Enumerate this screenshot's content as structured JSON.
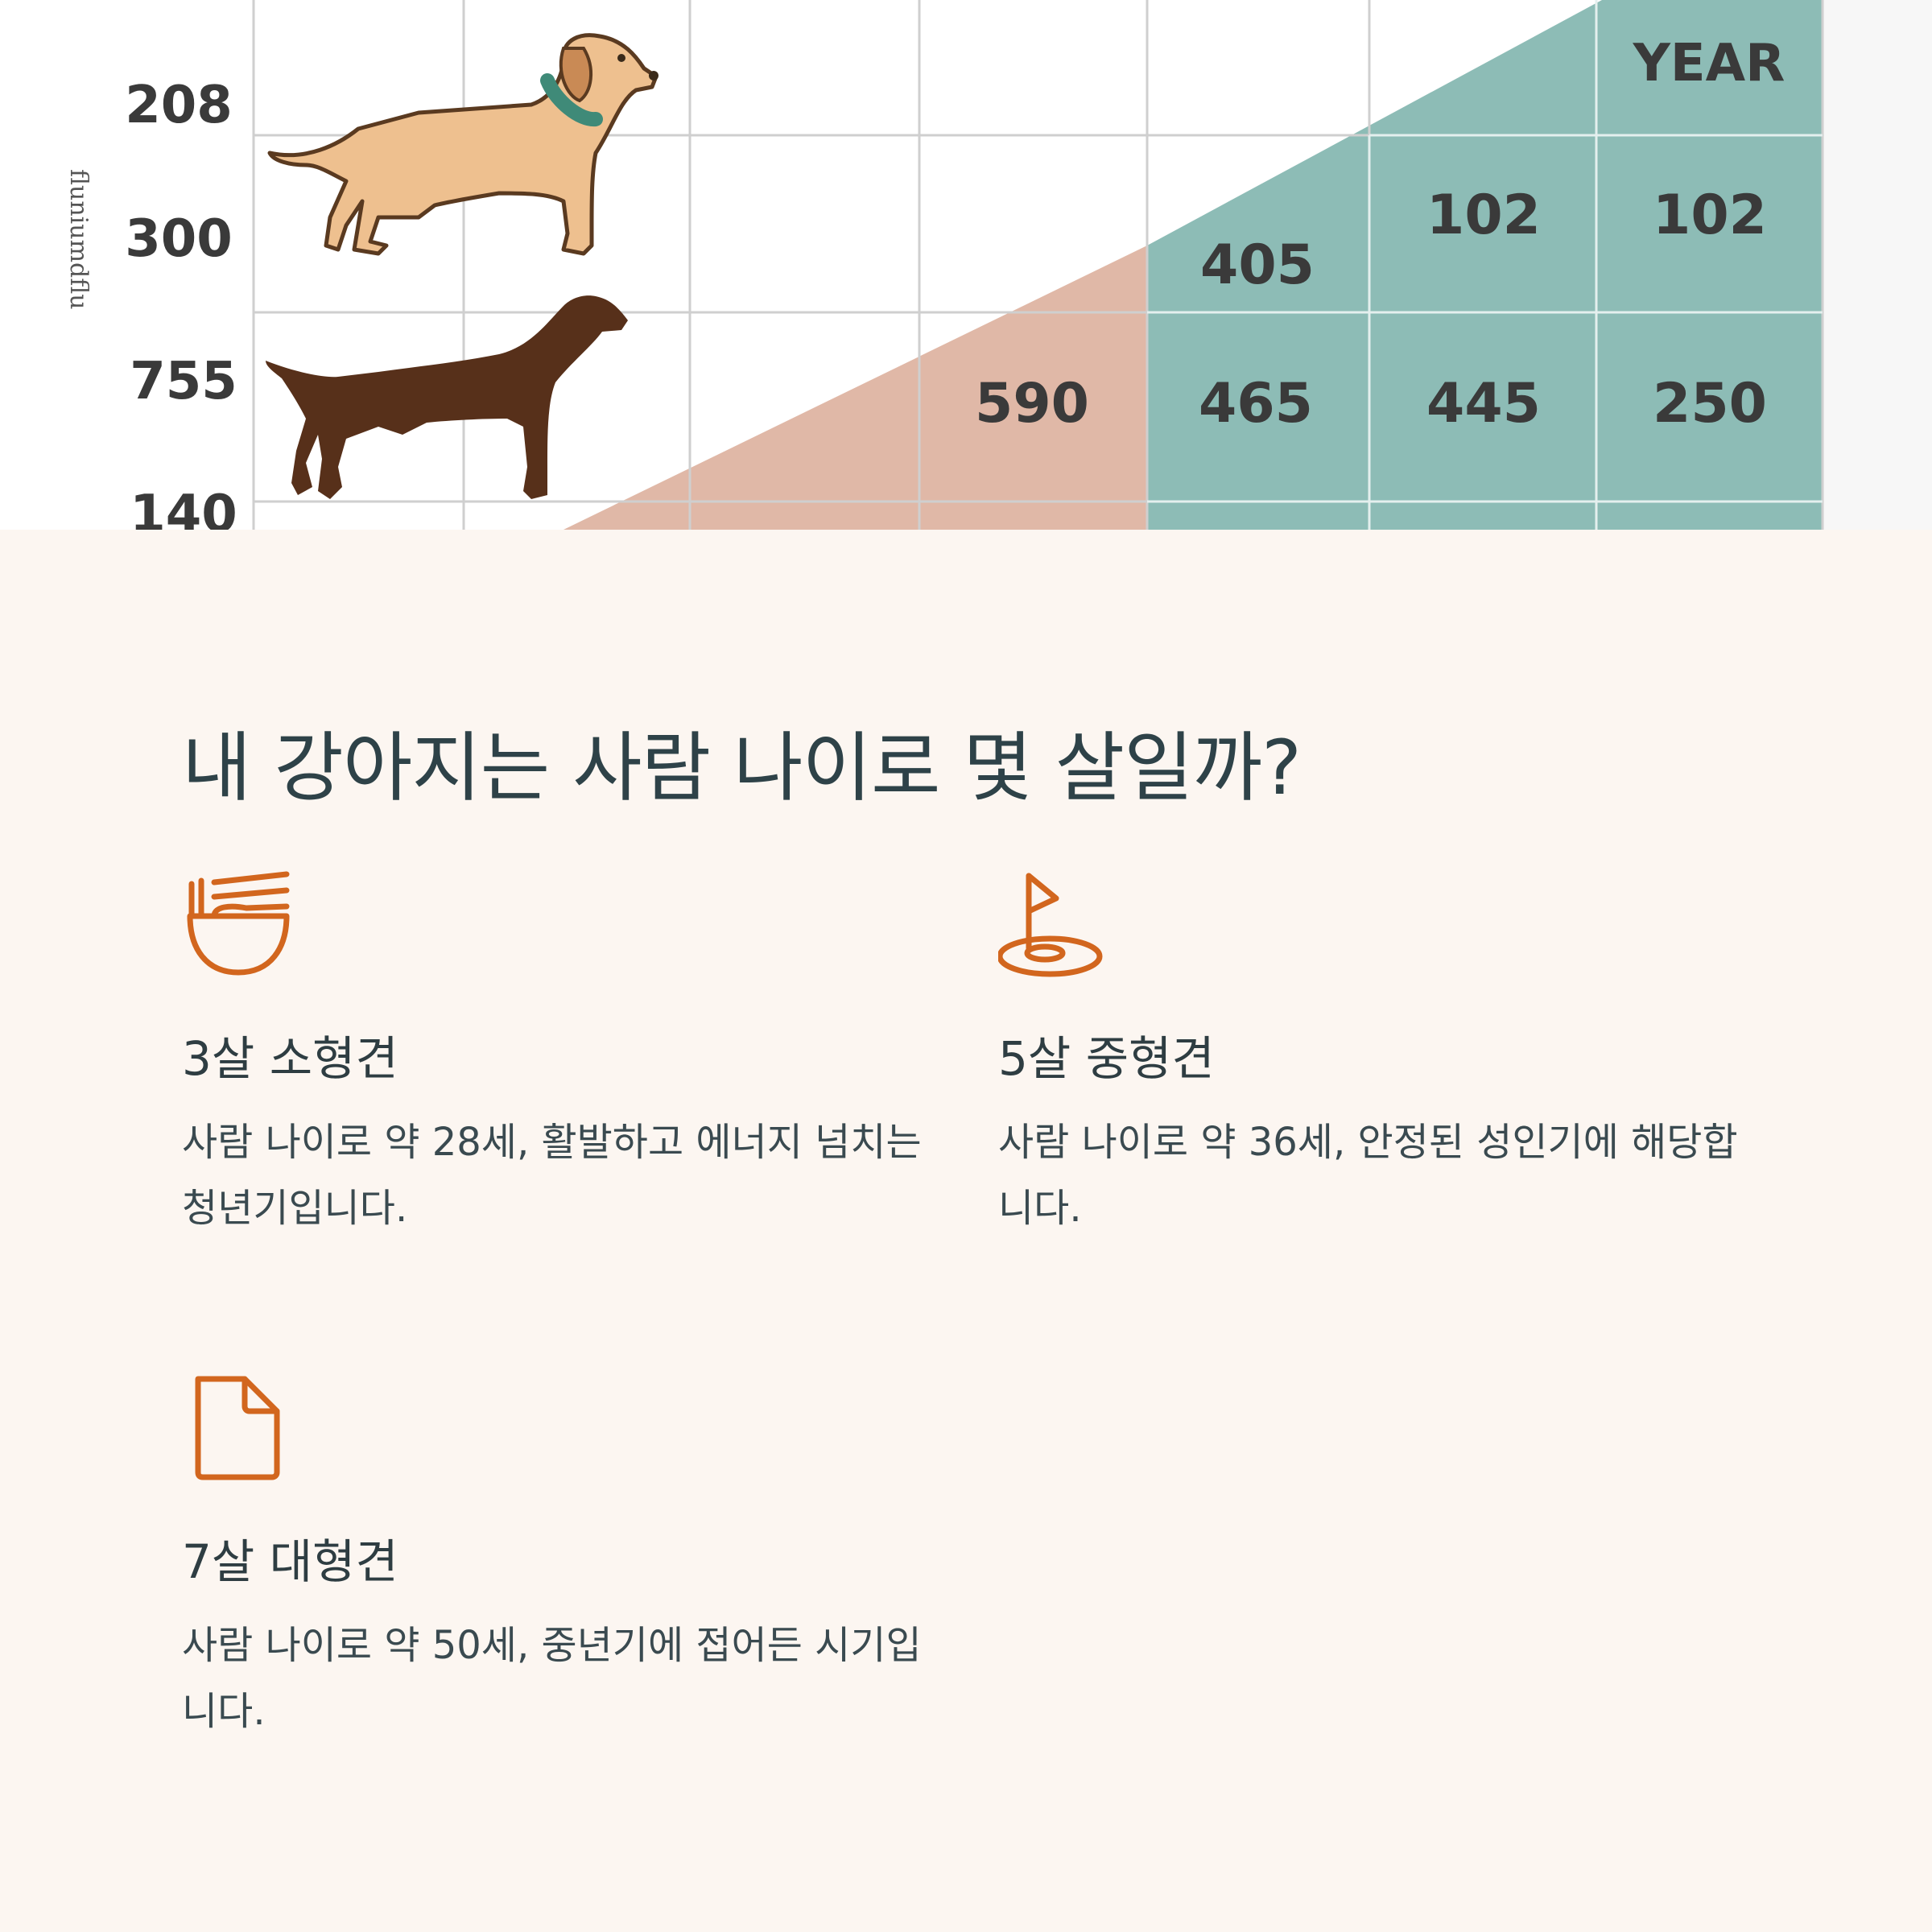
{
  "hero": {
    "row_labels": [
      "208",
      "300",
      "755",
      "140"
    ],
    "axis_label": "fluniumdflu",
    "year_label": "YEAR",
    "cells": {
      "r1c5": "102",
      "r1c6": "102",
      "r1c4": "405",
      "r2c3": "590",
      "r2c4": "465",
      "r2c5": "445",
      "r2c6": "250"
    },
    "colors": {
      "teal": "#8dbcb6",
      "salmon": "#e0b8a7",
      "dog_tan": "#eec08f",
      "dog_brown": "#57301a",
      "collar": "#3f8a78"
    }
  },
  "title": "내 강아지는 사람 나이로 몇 살일까?",
  "cards": [
    {
      "icon": "noodle-bowl-icon",
      "title": "3살 소형견",
      "text": "사람 나이로 약 28세, 활발하고 에너지 넘치는 청년기입니다."
    },
    {
      "icon": "golf-flag-icon",
      "title": "5살 중형견",
      "text": "사람 나이로 약 36세, 안정된 성인기에 해당합니다."
    },
    {
      "icon": "document-icon",
      "title": "7살 대형견",
      "text": "사람 나이로 약 50세, 중년기에 접어든 시기입니다."
    }
  ],
  "accent_color": "#d2661e"
}
